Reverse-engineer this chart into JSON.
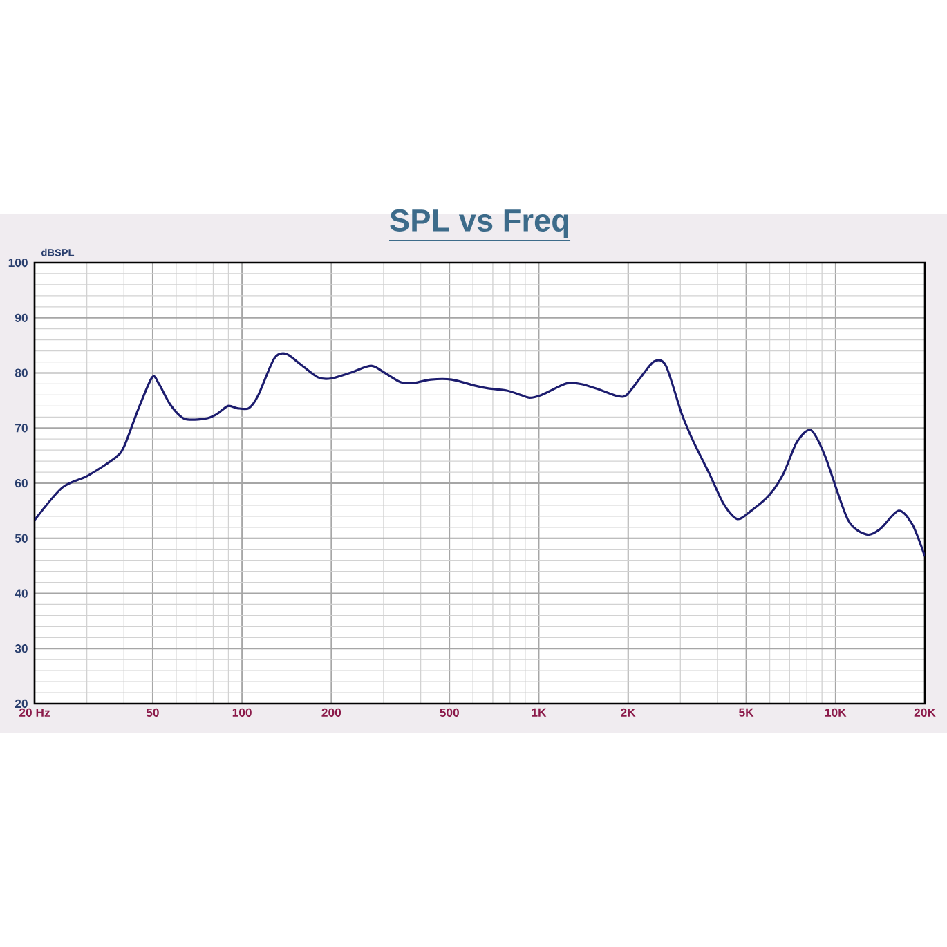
{
  "chart_data": {
    "type": "line",
    "title": "SPL vs Freq",
    "ylabel": "dBSPL",
    "log": "x",
    "grid": true,
    "marker": "none",
    "line_style": "solid",
    "xlim": [
      20,
      20000
    ],
    "ylim": [
      20,
      100
    ],
    "xticks": [
      {
        "value": 20,
        "label": "20  Hz"
      },
      {
        "value": 50,
        "label": "50"
      },
      {
        "value": 100,
        "label": "100"
      },
      {
        "value": 200,
        "label": "200"
      },
      {
        "value": 500,
        "label": "500"
      },
      {
        "value": 1000,
        "label": "1K"
      },
      {
        "value": 2000,
        "label": "2K"
      },
      {
        "value": 5000,
        "label": "5K"
      },
      {
        "value": 10000,
        "label": "10K"
      },
      {
        "value": 20000,
        "label": "20K"
      }
    ],
    "yticks": [
      20,
      30,
      40,
      50,
      60,
      70,
      80,
      90,
      100
    ],
    "series": [
      {
        "color": "#1c1c6e",
        "x": [
          20,
          24.8,
          30.1,
          37.4,
          40.1,
          44.7,
          49.8,
          52.5,
          57.4,
          63.9,
          75,
          82.1,
          89.7,
          96.4,
          105.4,
          113.3,
          128.3,
          140.4,
          156.3,
          180.2,
          200,
          231,
          272,
          303,
          343,
          382,
          433,
          508,
          608,
          676,
          780,
          869,
          933,
          1021,
          1117,
          1242,
          1384,
          1596,
          1842,
          1978,
          2204,
          2450,
          2681,
          3035,
          3321,
          3759,
          4189,
          4666,
          5196,
          5992,
          6670,
          7416,
          8262,
          9204,
          11000,
          12700,
          14140,
          16300,
          18150,
          20000
        ],
        "values": [
          53.3,
          59.2,
          61.3,
          64.6,
          66.7,
          73.4,
          79.2,
          78,
          74.2,
          71.7,
          71.7,
          72.5,
          74,
          73.6,
          73.6,
          75.9,
          82.6,
          83.5,
          81.7,
          79.2,
          79,
          80,
          81.3,
          80,
          78.3,
          78.2,
          78.8,
          78.8,
          77.7,
          77.2,
          76.8,
          76,
          75.5,
          76,
          77,
          78.1,
          78,
          77,
          75.8,
          76,
          79.2,
          82.1,
          81.3,
          72.5,
          67.5,
          61.7,
          56.3,
          53.5,
          55,
          57.9,
          61.7,
          67.5,
          69.6,
          65,
          53.4,
          50.7,
          51.7,
          55,
          52.5,
          46.7
        ]
      }
    ]
  }
}
